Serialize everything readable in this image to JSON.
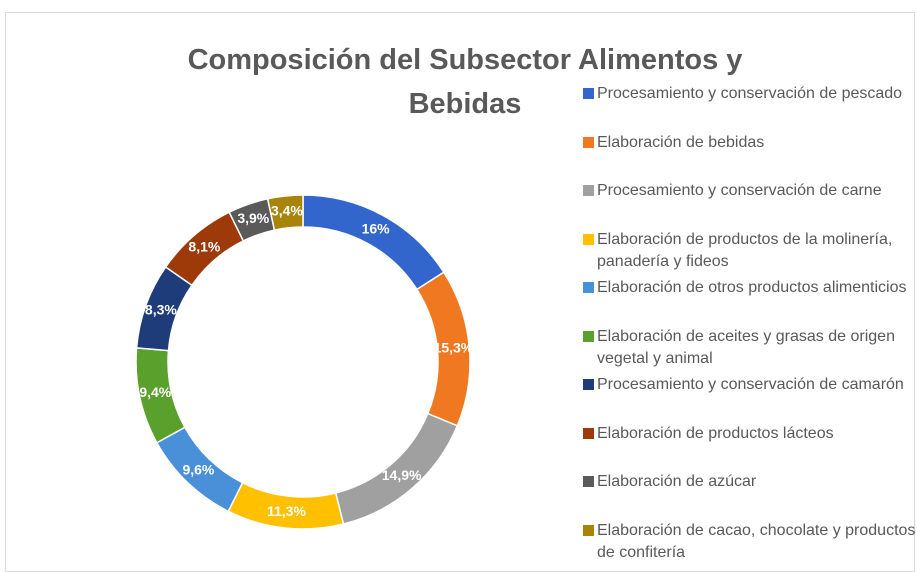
{
  "chart_data": {
    "type": "pie",
    "donut": true,
    "title": "Composición del Subsector Alimentos y Bebidas",
    "categories": [
      "Procesamiento y conservación de pescado",
      "Elaboración de bebidas",
      "Procesamiento y conservación de carne",
      "Elaboración de productos de la molinería, panadería y fideos",
      "Elaboración de otros productos alimenticios",
      "Elaboración de aceites y grasas de origen vegetal y animal",
      "Procesamiento y conservación de camarón",
      "Elaboración de productos lácteos",
      "Elaboración de azúcar",
      "Elaboración de cacao, chocolate y productos de confitería"
    ],
    "values": [
      16,
      15.3,
      14.9,
      11.3,
      9.6,
      9.4,
      8.3,
      8.1,
      3.9,
      3.4
    ],
    "value_labels": [
      "16%",
      "15,3%",
      "14,9%",
      "11,3%",
      "9,6%",
      "9,4%",
      "8,3%",
      "8,1%",
      "3,9%",
      "3,4%"
    ],
    "colors": [
      "#3366cc",
      "#f07820",
      "#a0a0a0",
      "#ffc000",
      "#4a90d9",
      "#5aa02c",
      "#1f3c7a",
      "#9e3a0a",
      "#5a5a5a",
      "#a8850a"
    ],
    "legend": "right"
  }
}
